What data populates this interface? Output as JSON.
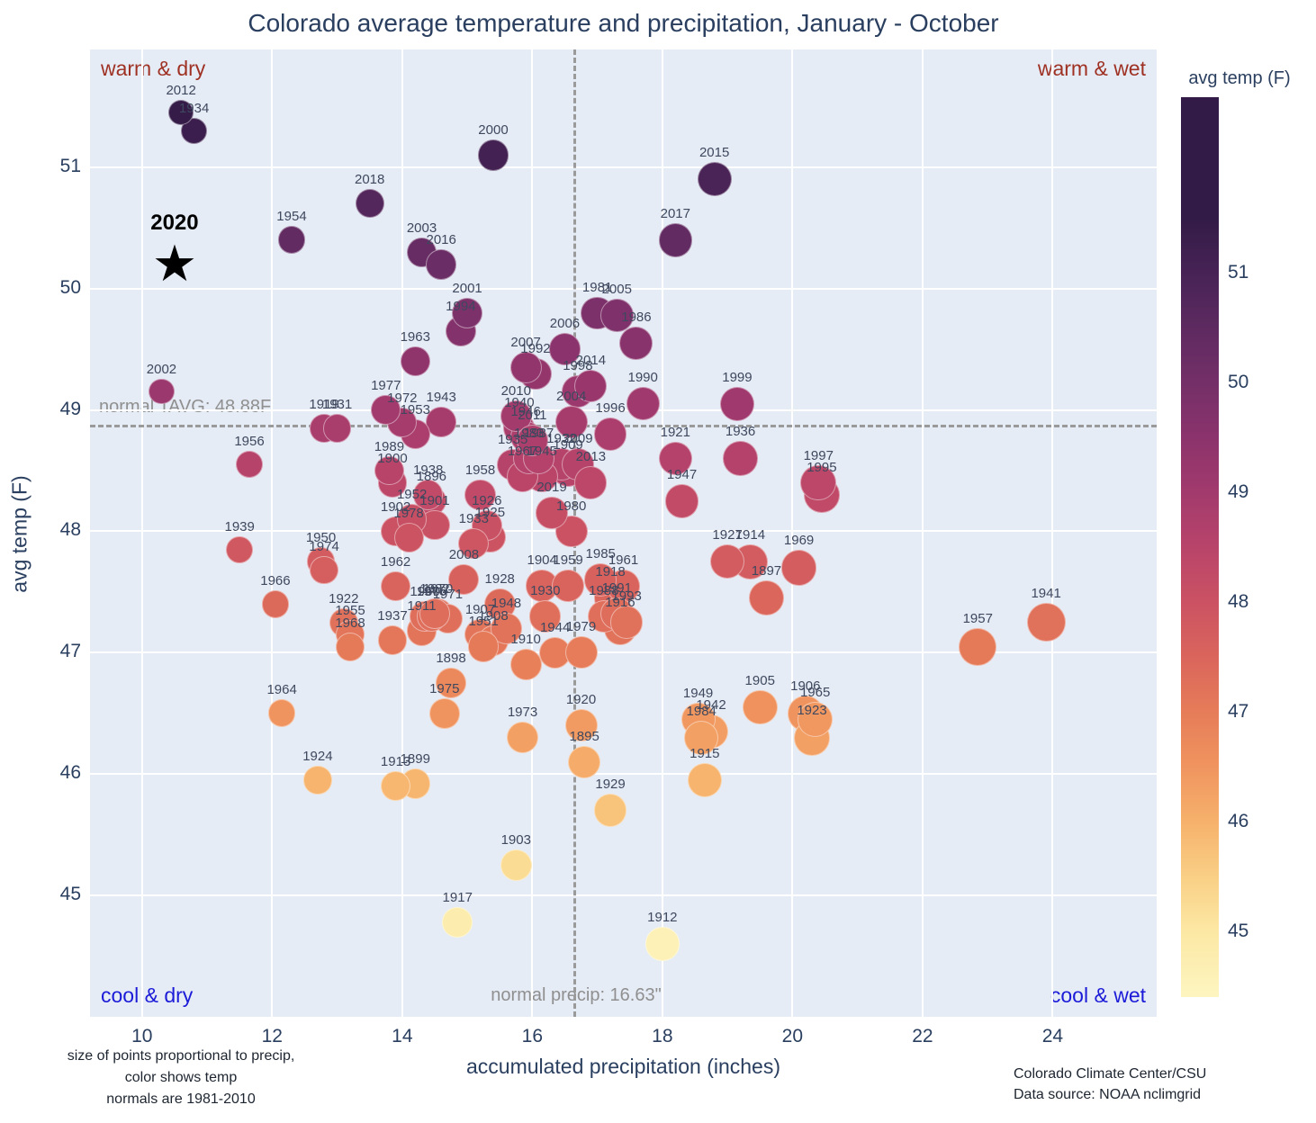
{
  "title": "Colorado average temperature and precipitation, January - October",
  "xlabel": "accumulated precipitation (inches)",
  "ylabel": "avg temp (F)",
  "annotations": {
    "top_left": "warm & dry",
    "top_right": "warm & wet",
    "bottom_left": "cool & dry",
    "bottom_right": "cool & wet",
    "normal_tavg": "normal TAVG: 48.88F",
    "normal_precip": "normal precip: 16.63\"",
    "star_label": "2020"
  },
  "footnote": [
    "size of points proportional to precip,",
    "color shows temp",
    "normals are 1981-2010"
  ],
  "credit": [
    "Colorado Climate Center/CSU",
    "Data source: NOAA nclimgrid"
  ],
  "colorbar": {
    "title": "avg temp (F)",
    "ticks": [
      45,
      46,
      47,
      48,
      49,
      50,
      51
    ],
    "min": 44.4,
    "max": 52.6
  },
  "colors": {
    "warm": "#9e3123",
    "cool": "#1b1bd8",
    "title": "#2a3f5f",
    "plot_bg": "#e6ecf5",
    "grid": "#ffffff",
    "dash": "#9a9a9a"
  },
  "chart_data": {
    "type": "scatter",
    "title": "Colorado average temperature and precipitation, January - October",
    "xlabel": "accumulated precipitation (inches)",
    "ylabel": "avg temp (F)",
    "legend": "color = avg temp (F), size proportional to precip",
    "grid": true,
    "xlim": [
      9.2,
      25.6
    ],
    "ylim": [
      44.0,
      51.97
    ],
    "x_ticks": [
      10,
      12,
      14,
      16,
      18,
      20,
      22,
      24
    ],
    "y_ticks": [
      45,
      46,
      47,
      48,
      49,
      50,
      51
    ],
    "normal_precip": 16.63,
    "normal_tavg": 48.88,
    "star": {
      "year": 2020,
      "precip": 10.5,
      "temp": 50.18
    },
    "colorscale": [
      [
        44.4,
        "#fdf5c0"
      ],
      [
        45.0,
        "#fce8a4"
      ],
      [
        45.5,
        "#f9cf85"
      ],
      [
        46.0,
        "#f6b16c"
      ],
      [
        46.5,
        "#f0945f"
      ],
      [
        47.0,
        "#e67c59"
      ],
      [
        47.5,
        "#da655c"
      ],
      [
        48.0,
        "#cb5263"
      ],
      [
        48.5,
        "#b8446a"
      ],
      [
        49.0,
        "#a23a6d"
      ],
      [
        49.5,
        "#8b336c"
      ],
      [
        50.0,
        "#742f68"
      ],
      [
        50.5,
        "#5d2a60"
      ],
      [
        51.0,
        "#472355"
      ],
      [
        51.5,
        "#331b47"
      ]
    ],
    "points_fields": [
      "year",
      "precip_in",
      "avg_temp_f"
    ],
    "points": [
      [
        1895,
        16.8,
        46.1
      ],
      [
        1896,
        14.45,
        48.25
      ],
      [
        1897,
        19.6,
        47.45
      ],
      [
        1898,
        14.75,
        46.75
      ],
      [
        1899,
        14.2,
        45.92
      ],
      [
        1900,
        13.85,
        48.4
      ],
      [
        1901,
        14.5,
        48.05
      ],
      [
        1902,
        13.9,
        48.0
      ],
      [
        1903,
        15.75,
        45.25
      ],
      [
        1904,
        16.15,
        47.55
      ],
      [
        1905,
        19.5,
        46.55
      ],
      [
        1906,
        20.2,
        46.5
      ],
      [
        1907,
        15.2,
        47.15
      ],
      [
        1908,
        15.4,
        47.1
      ],
      [
        1909,
        16.55,
        48.5
      ],
      [
        1910,
        15.9,
        46.9
      ],
      [
        1911,
        14.3,
        47.18
      ],
      [
        1912,
        18.0,
        44.6
      ],
      [
        1913,
        13.9,
        45.9
      ],
      [
        1914,
        19.35,
        47.75
      ],
      [
        1915,
        18.65,
        45.95
      ],
      [
        1916,
        17.35,
        47.2
      ],
      [
        1917,
        14.85,
        44.78
      ],
      [
        1918,
        17.2,
        47.45
      ],
      [
        1919,
        12.8,
        48.85
      ],
      [
        1920,
        16.75,
        46.4
      ],
      [
        1921,
        18.2,
        48.6
      ],
      [
        1922,
        13.1,
        47.25
      ],
      [
        1923,
        20.3,
        46.3
      ],
      [
        1924,
        12.7,
        45.95
      ],
      [
        1925,
        15.35,
        47.95
      ],
      [
        1926,
        15.3,
        48.05
      ],
      [
        1927,
        19.0,
        47.75
      ],
      [
        1928,
        15.5,
        47.4
      ],
      [
        1929,
        17.2,
        45.7
      ],
      [
        1930,
        16.2,
        47.3
      ],
      [
        1931,
        13.0,
        48.85
      ],
      [
        1932,
        16.45,
        48.55
      ],
      [
        1933,
        15.1,
        47.9
      ],
      [
        1934,
        10.8,
        51.3
      ],
      [
        1935,
        15.7,
        48.55
      ],
      [
        1936,
        19.2,
        48.6
      ],
      [
        1937,
        13.85,
        47.1
      ],
      [
        1938,
        14.4,
        48.3
      ],
      [
        1939,
        11.5,
        47.85
      ],
      [
        1940,
        15.8,
        48.85
      ],
      [
        1941,
        23.9,
        47.25
      ],
      [
        1942,
        18.75,
        46.35
      ],
      [
        1943,
        14.6,
        48.9
      ],
      [
        1944,
        16.35,
        47.0
      ],
      [
        1945,
        16.15,
        48.45
      ],
      [
        1946,
        15.9,
        48.78
      ],
      [
        1947,
        18.3,
        48.25
      ],
      [
        1948,
        15.6,
        47.2
      ],
      [
        1949,
        18.55,
        46.45
      ],
      [
        1950,
        12.75,
        47.75
      ],
      [
        1951,
        15.25,
        47.05
      ],
      [
        1952,
        14.15,
        48.1
      ],
      [
        1953,
        14.2,
        48.8
      ],
      [
        1954,
        12.3,
        50.4
      ],
      [
        1955,
        13.2,
        47.15
      ],
      [
        1956,
        11.65,
        48.55
      ],
      [
        1957,
        22.85,
        47.05
      ],
      [
        1958,
        15.2,
        48.3
      ],
      [
        1959,
        16.55,
        47.55
      ],
      [
        1960,
        14.35,
        47.3
      ],
      [
        1961,
        17.4,
        47.55
      ],
      [
        1962,
        13.9,
        47.55
      ],
      [
        1963,
        14.2,
        49.4
      ],
      [
        1964,
        12.15,
        46.5
      ],
      [
        1965,
        20.35,
        46.45
      ],
      [
        1966,
        12.05,
        47.4
      ],
      [
        1967,
        15.85,
        48.45
      ],
      [
        1968,
        13.2,
        47.05
      ],
      [
        1969,
        20.1,
        47.7
      ],
      [
        1970,
        14.55,
        47.32
      ],
      [
        1971,
        14.7,
        47.28
      ],
      [
        1972,
        14.0,
        48.9
      ],
      [
        1973,
        15.85,
        46.3
      ],
      [
        1974,
        12.8,
        47.68
      ],
      [
        1975,
        14.65,
        46.5
      ],
      [
        1976,
        14.45,
        47.3
      ],
      [
        1977,
        13.75,
        49.0
      ],
      [
        1978,
        14.1,
        47.95
      ],
      [
        1979,
        16.75,
        47.0
      ],
      [
        1980,
        16.6,
        48.0
      ],
      [
        1981,
        17.0,
        49.8
      ],
      [
        1982,
        14.5,
        47.32
      ],
      [
        1983,
        15.95,
        48.6
      ],
      [
        1984,
        18.6,
        46.3
      ],
      [
        1985,
        17.05,
        47.6
      ],
      [
        1986,
        17.6,
        49.55
      ],
      [
        1987,
        16.1,
        48.6
      ],
      [
        1988,
        17.1,
        47.3
      ],
      [
        1989,
        13.8,
        48.5
      ],
      [
        1990,
        17.7,
        49.05
      ],
      [
        1991,
        17.3,
        47.32
      ],
      [
        1992,
        16.05,
        49.3
      ],
      [
        1993,
        17.45,
        47.25
      ],
      [
        1994,
        14.9,
        49.65
      ],
      [
        1995,
        20.45,
        48.3
      ],
      [
        1996,
        17.2,
        48.8
      ],
      [
        1997,
        20.4,
        48.4
      ],
      [
        1998,
        16.7,
        49.15
      ],
      [
        1999,
        19.15,
        49.05
      ],
      [
        2000,
        15.4,
        51.1
      ],
      [
        2001,
        15.0,
        49.8
      ],
      [
        2002,
        10.3,
        49.15
      ],
      [
        2003,
        14.3,
        50.3
      ],
      [
        2004,
        16.6,
        48.9
      ],
      [
        2005,
        17.3,
        49.78
      ],
      [
        2006,
        16.5,
        49.5
      ],
      [
        2007,
        15.9,
        49.35
      ],
      [
        2008,
        14.95,
        47.6
      ],
      [
        2009,
        16.7,
        48.55
      ],
      [
        2010,
        15.75,
        48.95
      ],
      [
        2011,
        16.0,
        48.75
      ],
      [
        2012,
        10.6,
        51.45
      ],
      [
        2013,
        16.9,
        48.4
      ],
      [
        2014,
        16.9,
        49.2
      ],
      [
        2015,
        18.8,
        50.9
      ],
      [
        2016,
        14.6,
        50.2
      ],
      [
        2017,
        18.2,
        50.4
      ],
      [
        2018,
        13.5,
        50.7
      ],
      [
        2019,
        16.3,
        48.15
      ]
    ]
  }
}
